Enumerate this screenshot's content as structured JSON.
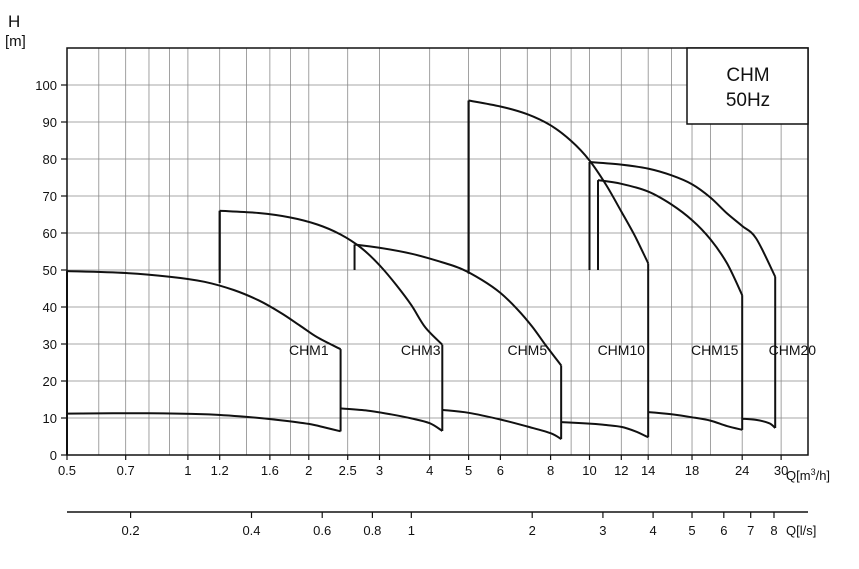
{
  "chart_data": {
    "type": "line",
    "title_box": {
      "line1": "CHM",
      "line2": "50Hz"
    },
    "ylabel": {
      "symbol": "H",
      "unit": "[m]"
    },
    "xlabel_q": "Q[m³/h]",
    "xlabel_q_base": "Q[m",
    "xlabel_q_sup": "3",
    "xlabel_q_tail": "/h]",
    "xlabel_ls": "Q[l/s]",
    "x_scale": "log",
    "xlim": [
      0.5,
      35
    ],
    "ylim": [
      0,
      110
    ],
    "grid": true,
    "y_ticks": [
      "0",
      "10",
      "20",
      "30",
      "40",
      "50",
      "60",
      "70",
      "80",
      "90",
      "100"
    ],
    "x_tick_labels": [
      {
        "v": 0.5,
        "label": "0.5"
      },
      {
        "v": 0.7,
        "label": "0.7"
      },
      {
        "v": 1,
        "label": "1"
      },
      {
        "v": 1.2,
        "label": "1.2"
      },
      {
        "v": 1.6,
        "label": "1.6"
      },
      {
        "v": 2,
        "label": "2"
      },
      {
        "v": 2.5,
        "label": "2.5"
      },
      {
        "v": 3,
        "label": "3"
      },
      {
        "v": 4,
        "label": "4"
      },
      {
        "v": 5,
        "label": "5"
      },
      {
        "v": 6,
        "label": "6"
      },
      {
        "v": 8,
        "label": "8"
      },
      {
        "v": 10,
        "label": "10"
      },
      {
        "v": 12,
        "label": "12"
      },
      {
        "v": 14,
        "label": "14"
      },
      {
        "v": 18,
        "label": "18"
      },
      {
        "v": 24,
        "label": "24"
      },
      {
        "v": 30,
        "label": "30"
      }
    ],
    "x_gridlines": [
      0.6,
      0.7,
      0.8,
      0.9,
      1,
      1.2,
      1.4,
      1.6,
      1.8,
      2,
      2.5,
      3,
      4,
      5,
      6,
      7,
      8,
      9,
      10,
      12,
      14,
      16,
      18,
      20,
      24,
      30,
      35
    ],
    "ls_ticks": [
      {
        "v": 0.2,
        "label": "0.2"
      },
      {
        "v": 0.4,
        "label": "0.4"
      },
      {
        "v": 0.6,
        "label": "0.6"
      },
      {
        "v": 0.8,
        "label": "0.8"
      },
      {
        "v": 1,
        "label": "1"
      },
      {
        "v": 2,
        "label": "2"
      },
      {
        "v": 3,
        "label": "3"
      },
      {
        "v": 4,
        "label": "4"
      },
      {
        "v": 5,
        "label": "5"
      },
      {
        "v": 6,
        "label": "6"
      },
      {
        "v": 7,
        "label": "7"
      },
      {
        "v": 8,
        "label": "8"
      }
    ],
    "series": [
      {
        "name": "CHM1",
        "label_at": [
          2.0,
          27
        ],
        "upper": [
          [
            0.5,
            49.7
          ],
          [
            0.7,
            49.2
          ],
          [
            0.9,
            48.2
          ],
          [
            1.1,
            46.8
          ],
          [
            1.3,
            44.6
          ],
          [
            1.5,
            41.8
          ],
          [
            1.7,
            38.5
          ],
          [
            1.9,
            35.0
          ],
          [
            2.1,
            31.8
          ],
          [
            2.4,
            28.6
          ]
        ],
        "lower": [
          [
            0.5,
            11.2
          ],
          [
            0.8,
            11.3
          ],
          [
            1.1,
            11.0
          ],
          [
            1.4,
            10.3
          ],
          [
            1.7,
            9.4
          ],
          [
            2.0,
            8.4
          ],
          [
            2.2,
            7.4
          ],
          [
            2.4,
            6.4
          ]
        ]
      },
      {
        "name": "CHM3",
        "label_at": [
          3.8,
          27
        ],
        "upper": [
          [
            1.2,
            66.0
          ],
          [
            1.5,
            65.4
          ],
          [
            1.8,
            64.2
          ],
          [
            2.1,
            62.3
          ],
          [
            2.4,
            59.6
          ],
          [
            2.7,
            56.0
          ],
          [
            3.0,
            51.3
          ],
          [
            3.3,
            46.0
          ],
          [
            3.6,
            40.5
          ],
          [
            3.9,
            34.5
          ],
          [
            4.3,
            29.8
          ]
        ],
        "lower": [
          [
            2.4,
            12.6
          ],
          [
            2.8,
            12.0
          ],
          [
            3.2,
            11.0
          ],
          [
            3.6,
            9.9
          ],
          [
            4.0,
            8.6
          ],
          [
            4.3,
            6.5
          ]
        ]
      },
      {
        "name": "CHM5",
        "label_at": [
          7.0,
          27
        ],
        "upper": [
          [
            2.6,
            56.9
          ],
          [
            3.0,
            56.0
          ],
          [
            3.6,
            54.4
          ],
          [
            4.2,
            52.4
          ],
          [
            4.8,
            50.3
          ],
          [
            5.4,
            47.3
          ],
          [
            6.0,
            43.8
          ],
          [
            6.6,
            39.5
          ],
          [
            7.2,
            34.7
          ],
          [
            7.8,
            29.5
          ],
          [
            8.5,
            24.2
          ]
        ],
        "lower": [
          [
            4.3,
            12.2
          ],
          [
            5.0,
            11.4
          ],
          [
            6.0,
            9.6
          ],
          [
            7.0,
            7.7
          ],
          [
            8.0,
            5.9
          ],
          [
            8.5,
            4.3
          ]
        ]
      },
      {
        "name": "CHM10",
        "label_at": [
          12.0,
          27
        ],
        "upper": [
          [
            5.0,
            95.8
          ],
          [
            6.0,
            94.2
          ],
          [
            7.0,
            92.1
          ],
          [
            8.0,
            89.1
          ],
          [
            9.0,
            84.9
          ],
          [
            10.0,
            79.6
          ],
          [
            11.0,
            73.0
          ],
          [
            12.0,
            65.8
          ],
          [
            13.0,
            59.0
          ],
          [
            14.0,
            51.8
          ]
        ],
        "lower": [
          [
            8.5,
            8.9
          ],
          [
            10.0,
            8.5
          ],
          [
            11.0,
            8.1
          ],
          [
            12.0,
            7.6
          ],
          [
            13.0,
            6.4
          ],
          [
            14.0,
            4.8
          ]
        ]
      },
      {
        "name": "CHM15",
        "label_at": [
          20.5,
          27
        ],
        "upper": [
          [
            10.5,
            74.3
          ],
          [
            12.0,
            73.3
          ],
          [
            14.0,
            71.2
          ],
          [
            16.0,
            67.7
          ],
          [
            18.0,
            63.5
          ],
          [
            20.0,
            58.3
          ],
          [
            22.0,
            51.8
          ],
          [
            24.0,
            43.2
          ]
        ],
        "lower": [
          [
            14.0,
            11.6
          ],
          [
            16.0,
            11.0
          ],
          [
            18.0,
            10.2
          ],
          [
            20.0,
            9.3
          ],
          [
            22.0,
            7.8
          ],
          [
            24.0,
            6.8
          ]
        ]
      },
      {
        "name": "CHM20",
        "label_at": [
          32.0,
          27
        ],
        "upper": [
          [
            10.0,
            79.2
          ],
          [
            12.0,
            78.5
          ],
          [
            14.0,
            77.4
          ],
          [
            16.0,
            75.6
          ],
          [
            18.0,
            73.2
          ],
          [
            20.0,
            69.6
          ],
          [
            22.0,
            65.3
          ],
          [
            24.0,
            61.9
          ],
          [
            26.0,
            58.5
          ],
          [
            29.0,
            48.2
          ]
        ],
        "lower": [
          [
            24.0,
            9.8
          ],
          [
            26.0,
            9.5
          ],
          [
            28.0,
            8.6
          ],
          [
            29.0,
            7.3
          ]
        ]
      }
    ]
  }
}
